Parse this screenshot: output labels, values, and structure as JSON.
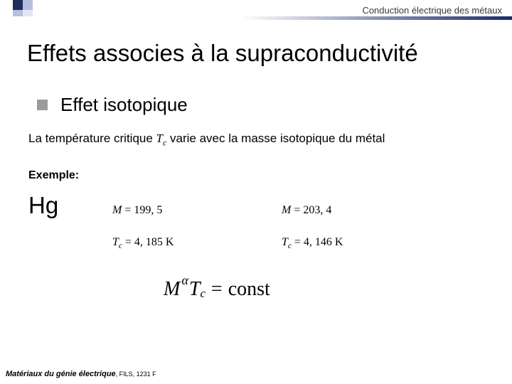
{
  "header": {
    "text": "Conduction électrique des métaux",
    "gradient_start": "#ffffff",
    "gradient_end": "#1a2a6c",
    "squares": {
      "top_left": "#1f2f5a",
      "top_right": "#b6bfdd",
      "bottom_left": "#b6bfdd",
      "bottom_right": "#e2e6f1"
    }
  },
  "title": "Effets associes à la supraconductivité",
  "bullet": {
    "square_color": "#9b9b9b",
    "label": "Effet isotopique"
  },
  "description": {
    "prefix": "La température critique ",
    "var_T": "T",
    "var_c": "c",
    "suffix": " varie avec la masse isotopique du métal"
  },
  "exemple_label": "Exemple:",
  "element": "Hg",
  "isotopes": [
    {
      "M_label": "M",
      "M_value": " = 199, 5",
      "T_label": "T",
      "T_sub": "c",
      "T_value": " =  4, 185 K"
    },
    {
      "M_label": "M",
      "M_value": " = 203, 4",
      "T_label": "T",
      "T_sub": "c",
      "T_value": " = 4, 146 K"
    }
  ],
  "formula": {
    "M": "M",
    "alpha": "α",
    "T": "T",
    "c": "c",
    "eq": "=",
    "rhs": "const"
  },
  "footer": {
    "bold": "Matériaux du génie électrique",
    "rest": ", FILS, 1231 F"
  },
  "colors": {
    "text": "#000000",
    "background": "#ffffff"
  }
}
